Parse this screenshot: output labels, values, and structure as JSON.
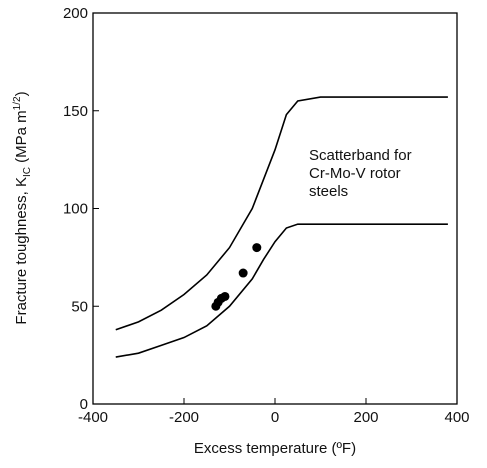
{
  "chart_data": {
    "type": "line",
    "xlabel": "Excess temperature (ºF)",
    "ylabel_parts": [
      "Fracture toughness, K",
      "IC",
      " (MPa m",
      "1/2",
      ")"
    ],
    "annotation": [
      "Scatterband for",
      "Cr-Mo-V rotor",
      "steels"
    ],
    "xlim": [
      -400,
      400
    ],
    "xticks": [
      -400,
      -200,
      0,
      200,
      400
    ],
    "ylim": [
      0,
      200
    ],
    "yticks": [
      0,
      50,
      100,
      150,
      200
    ],
    "series": [
      {
        "type": "line",
        "color": "#000000",
        "x": [
          -350,
          -300,
          -250,
          -200,
          -150,
          -100,
          -50,
          -25,
          0,
          25,
          50,
          100,
          200,
          380
        ],
        "values": [
          38,
          42,
          48,
          56,
          66,
          80,
          100,
          115,
          130,
          148,
          155,
          157,
          157,
          157
        ]
      },
      {
        "type": "line",
        "color": "#000000",
        "x": [
          -350,
          -300,
          -250,
          -200,
          -150,
          -100,
          -50,
          -25,
          0,
          25,
          50,
          100,
          200,
          380
        ],
        "values": [
          24,
          26,
          30,
          34,
          40,
          50,
          64,
          74,
          83,
          90,
          92,
          92,
          92,
          92
        ]
      },
      {
        "type": "scatter",
        "color": "#000000",
        "x": [
          -130,
          -125,
          -118,
          -110,
          -70,
          -40
        ],
        "values": [
          50,
          52,
          54,
          55,
          67,
          80
        ]
      }
    ]
  }
}
